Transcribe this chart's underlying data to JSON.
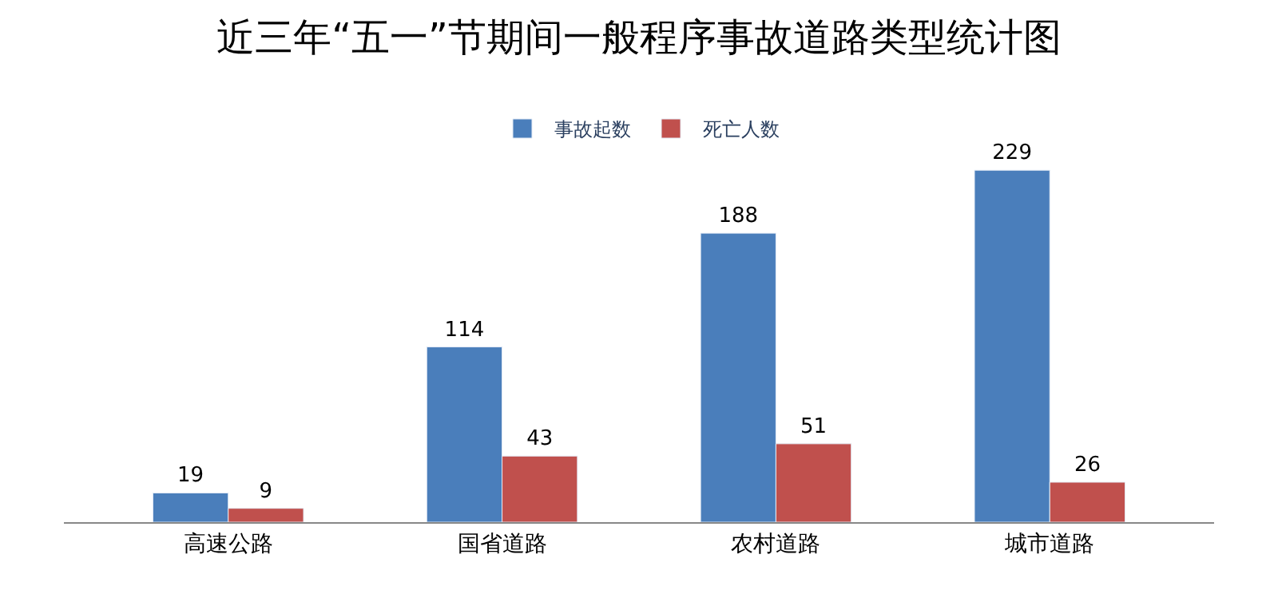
{
  "chart_data": {
    "type": "bar",
    "title": "近三年“五一”节期间一般程序事故道路类型统计图",
    "categories": [
      "高速公路",
      "国省道路",
      "农村道路",
      "城市道路"
    ],
    "series": [
      {
        "name": "事故起数",
        "color": "#4a7ebb",
        "values": [
          19,
          114,
          188,
          229
        ]
      },
      {
        "name": "死亡人数",
        "color": "#c0504d",
        "values": [
          9,
          43,
          51,
          26
        ]
      }
    ],
    "data_labels": true,
    "legend": "top"
  }
}
